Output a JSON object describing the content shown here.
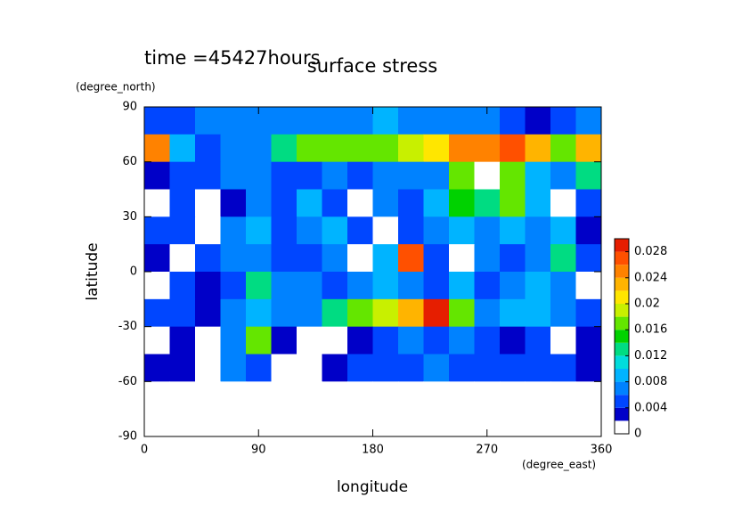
{
  "chart_data": {
    "type": "contour",
    "title": "surface stress",
    "annotation": "time =45427hours",
    "x_label": "longitude",
    "x_unit": "(degree_east)",
    "y_label": "latitude",
    "y_unit": "(degree_north)",
    "xlim": [
      0,
      360
    ],
    "ylim": [
      -90,
      90
    ],
    "xticks": [
      0,
      90,
      180,
      270,
      360
    ],
    "yticks": [
      -90,
      -60,
      -30,
      0,
      30,
      60,
      90
    ],
    "x": [
      10,
      30,
      50,
      70,
      90,
      110,
      130,
      150,
      170,
      190,
      210,
      230,
      250,
      270,
      290,
      310,
      330,
      350
    ],
    "y": [
      82.5,
      67.5,
      52.5,
      37.5,
      22.5,
      7.5,
      -7.5,
      -22.5,
      -37.5,
      -52.5,
      -67.5,
      -82.5
    ],
    "values": [
      [
        0.005,
        0.005,
        0.006,
        0.006,
        0.007,
        0.006,
        0.007,
        0.006,
        0.006,
        0.008,
        0.007,
        0.006,
        0.007,
        0.006,
        0.005,
        0.003,
        0.005,
        0.006
      ],
      [
        0.024,
        0.008,
        0.005,
        0.006,
        0.007,
        0.012,
        0.016,
        0.016,
        0.016,
        0.017,
        0.018,
        0.02,
        0.024,
        0.024,
        0.026,
        0.022,
        0.016,
        0.022
      ],
      [
        0.002,
        0.005,
        0.004,
        0.006,
        0.007,
        0.005,
        0.004,
        0.006,
        0.005,
        0.006,
        0.006,
        0.006,
        0.016,
        0.001,
        0.016,
        0.008,
        0.006,
        0.012
      ],
      [
        0.001,
        0.005,
        0.001,
        0.002,
        0.006,
        0.005,
        0.008,
        0.004,
        0.001,
        0.006,
        0.004,
        0.008,
        0.014,
        0.012,
        0.016,
        0.008,
        0.001,
        0.004
      ],
      [
        0.004,
        0.005,
        0.001,
        0.006,
        0.008,
        0.005,
        0.006,
        0.008,
        0.004,
        0.001,
        0.004,
        0.006,
        0.008,
        0.006,
        0.008,
        0.006,
        0.008,
        0.003
      ],
      [
        0.003,
        0.001,
        0.004,
        0.006,
        0.007,
        0.005,
        0.004,
        0.006,
        0.001,
        0.008,
        0.026,
        0.004,
        0.001,
        0.006,
        0.005,
        0.006,
        0.012,
        0.004
      ],
      [
        0.001,
        0.004,
        0.002,
        0.004,
        0.012,
        0.006,
        0.006,
        0.004,
        0.006,
        0.008,
        0.006,
        0.004,
        0.008,
        0.005,
        0.006,
        0.008,
        0.006,
        0.001
      ],
      [
        0.004,
        0.004,
        0.003,
        0.006,
        0.008,
        0.006,
        0.006,
        0.012,
        0.016,
        0.018,
        0.022,
        0.028,
        0.016,
        0.006,
        0.008,
        0.008,
        0.006,
        0.004
      ],
      [
        0.001,
        0.002,
        0.001,
        0.006,
        0.016,
        0.003,
        0.001,
        0.001,
        0.003,
        0.004,
        0.006,
        0.004,
        0.006,
        0.004,
        0.003,
        0.005,
        0.001,
        0.002
      ],
      [
        0.002,
        0.003,
        0.001,
        0.006,
        0.004,
        0.001,
        0.001,
        0.003,
        0.004,
        0.005,
        0.004,
        0.006,
        0.005,
        0.004,
        0.005,
        0.004,
        0.005,
        0.003
      ],
      [
        0,
        0,
        0,
        0,
        0,
        0,
        0,
        0,
        0,
        0,
        0,
        0,
        0,
        0,
        0,
        0,
        0,
        0
      ],
      [
        0,
        0,
        0,
        0,
        0,
        0,
        0,
        0,
        0,
        0,
        0,
        0,
        0,
        0,
        0,
        0,
        0,
        0
      ]
    ],
    "levels": [
      0,
      0.002,
      0.004,
      0.006,
      0.008,
      0.01,
      0.012,
      0.014,
      0.016,
      0.018,
      0.02,
      0.022,
      0.024,
      0.026,
      0.028,
      0.03
    ],
    "colors": [
      "#ffffff",
      "#0000c8",
      "#0046ff",
      "#0082ff",
      "#00b4ff",
      "#00dcdc",
      "#00dc82",
      "#00d200",
      "#64e600",
      "#c8f000",
      "#ffe600",
      "#ffb400",
      "#ff8200",
      "#ff5000",
      "#e61e00"
    ],
    "colorbar_ticks": [
      0,
      0.004,
      0.008,
      0.012,
      0.016,
      0.02,
      0.024,
      0.028
    ]
  }
}
